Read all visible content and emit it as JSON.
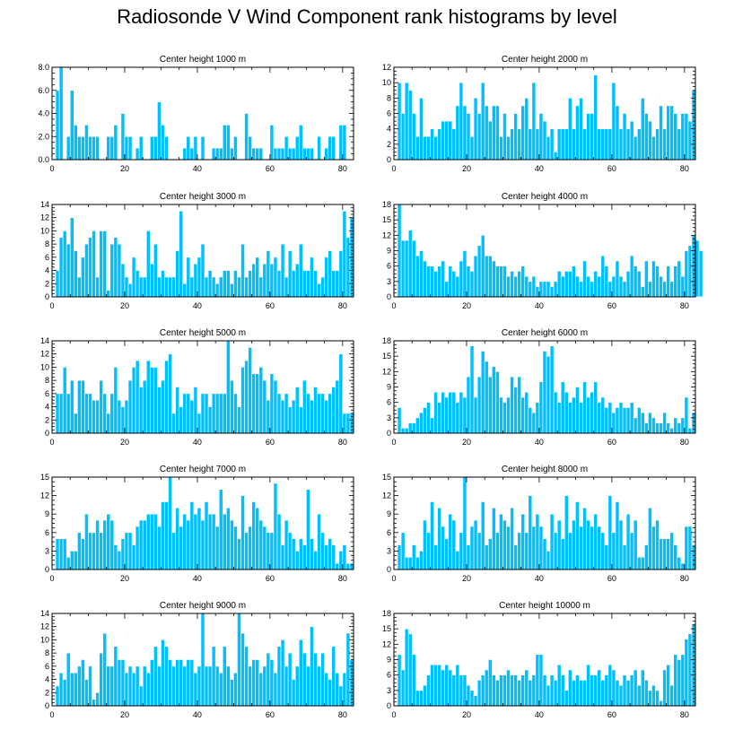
{
  "title": "Radiosonde V Wind Component rank histograms by level",
  "colors": {
    "bar": "#00bfff",
    "bar_edge": "#ffffff",
    "axis": "#000000"
  },
  "chart_data": [
    {
      "type": "bar",
      "title": "Center height 1000 m",
      "ylim": [
        0,
        8
      ],
      "yticks": [
        0,
        2,
        4,
        6,
        8
      ],
      "ytick_labels": [
        "0.0",
        "2.0",
        "4.0",
        "6.0",
        "8.0"
      ],
      "xticks": [
        0,
        20,
        40,
        60,
        80
      ],
      "xlim": [
        0,
        83
      ],
      "values": [
        0,
        6,
        8,
        0,
        2,
        6,
        3,
        2,
        2,
        3,
        2,
        2,
        2,
        0,
        0,
        2,
        2,
        3,
        0,
        4,
        2,
        2,
        0,
        1,
        2,
        0,
        0,
        2,
        2,
        5,
        3,
        2,
        0,
        0,
        0,
        0,
        1,
        2,
        1,
        2,
        0,
        2,
        0,
        0,
        1,
        1,
        1,
        3,
        3,
        1,
        2,
        0,
        0,
        4,
        2,
        1,
        1,
        1,
        0,
        0,
        3,
        1,
        1,
        1,
        2,
        1,
        1,
        2,
        3,
        1,
        1,
        1,
        0,
        2,
        0,
        1,
        2,
        2,
        0,
        3,
        3,
        0
      ]
    },
    {
      "type": "bar",
      "title": "Center height 2000 m",
      "ylim": [
        0,
        12
      ],
      "yticks": [
        0,
        2,
        4,
        6,
        8,
        10,
        12
      ],
      "ytick_labels": [
        "0",
        "2",
        "4",
        "6",
        "8",
        "10",
        "12"
      ],
      "xticks": [
        0,
        20,
        40,
        60,
        80
      ],
      "xlim": [
        0,
        83
      ],
      "values": [
        0,
        10,
        6,
        10,
        9,
        6,
        3,
        8,
        3,
        3,
        4,
        3,
        4,
        5,
        5,
        5,
        4,
        7,
        10,
        7,
        6,
        3,
        8,
        6,
        10,
        7,
        5,
        7,
        7,
        3,
        6,
        3,
        4,
        6,
        4,
        7,
        8,
        4,
        10,
        4,
        6,
        5,
        3,
        4,
        1,
        4,
        4,
        4,
        8,
        4,
        7,
        8,
        4,
        6,
        6,
        11,
        4,
        4,
        4,
        4,
        10,
        7,
        4,
        6,
        4,
        5,
        3,
        4,
        8,
        6,
        5,
        3,
        4,
        7,
        4,
        7,
        7,
        6,
        4,
        6,
        6,
        5,
        9
      ]
    },
    {
      "type": "bar",
      "title": "Center height 3000 m",
      "ylim": [
        0,
        14
      ],
      "yticks": [
        0,
        2,
        4,
        6,
        8,
        10,
        12,
        14
      ],
      "ytick_labels": [
        "0",
        "2",
        "4",
        "6",
        "8",
        "10",
        "12",
        "14"
      ],
      "xticks": [
        0,
        20,
        40,
        60,
        80
      ],
      "xlim": [
        0,
        83
      ],
      "values": [
        0,
        4,
        9,
        10,
        8,
        12,
        7,
        3,
        6,
        8,
        9,
        10,
        3,
        10,
        10,
        1,
        8,
        9,
        8,
        5,
        3,
        2,
        6,
        4,
        3,
        3,
        10,
        5,
        8,
        3,
        4,
        3,
        3,
        3,
        7,
        13,
        2,
        6,
        3,
        5,
        6,
        8,
        3,
        4,
        3,
        2,
        3,
        4,
        4,
        2,
        4,
        3,
        8,
        3,
        4,
        5,
        6,
        3,
        5,
        7,
        5,
        6,
        4,
        8,
        3,
        7,
        4,
        5,
        8,
        4,
        4,
        6,
        4,
        2,
        3,
        6,
        7,
        4,
        4,
        7,
        13,
        9,
        12
      ]
    },
    {
      "type": "bar",
      "title": "Center height 4000 m",
      "ylim": [
        0,
        18
      ],
      "yticks": [
        0,
        3,
        6,
        9,
        12,
        15,
        18
      ],
      "ytick_labels": [
        "0",
        "3",
        "6",
        "9",
        "12",
        "15",
        "18"
      ],
      "xticks": [
        0,
        20,
        40,
        60,
        80
      ],
      "xlim": [
        0,
        83
      ],
      "values": [
        0,
        18,
        11,
        11,
        13,
        11,
        8,
        9,
        7,
        6,
        6,
        5,
        6,
        7,
        3,
        6,
        5,
        4,
        7,
        9,
        6,
        5,
        8,
        10,
        12,
        8,
        8,
        7,
        6,
        6,
        6,
        4,
        5,
        4,
        5,
        6,
        4,
        3,
        4,
        2,
        3,
        3,
        3,
        2,
        3,
        5,
        4,
        5,
        5,
        6,
        4,
        3,
        7,
        4,
        3,
        5,
        4,
        8,
        6,
        3,
        4,
        7,
        4,
        3,
        5,
        8,
        6,
        5,
        2,
        7,
        3,
        7,
        6,
        4,
        3,
        6,
        3,
        6,
        7,
        4,
        9,
        10,
        12,
        11,
        9
      ]
    },
    {
      "type": "bar",
      "title": "Center height 5000 m",
      "ylim": [
        0,
        14
      ],
      "yticks": [
        0,
        2,
        4,
        6,
        8,
        10,
        12,
        14
      ],
      "ytick_labels": [
        "0",
        "2",
        "4",
        "6",
        "8",
        "10",
        "12",
        "14"
      ],
      "xticks": [
        0,
        20,
        40,
        60,
        80
      ],
      "xlim": [
        0,
        83
      ],
      "values": [
        0,
        6,
        6,
        10,
        6,
        8,
        3,
        8,
        8,
        6,
        6,
        5,
        5,
        8,
        6,
        3,
        6,
        10,
        5,
        4,
        5,
        8,
        10,
        11,
        7,
        8,
        11,
        10,
        10,
        7,
        8,
        11,
        12,
        3,
        7,
        4,
        6,
        6,
        5,
        7,
        3,
        6,
        6,
        4,
        6,
        6,
        6,
        6,
        14,
        8,
        6,
        4,
        10,
        11,
        13,
        9,
        9,
        10,
        8,
        5,
        9,
        8,
        6,
        5,
        6,
        4,
        5,
        7,
        4,
        8,
        6,
        5,
        7,
        6,
        6,
        5,
        6,
        7,
        8,
        12,
        3,
        3,
        3
      ]
    },
    {
      "type": "bar",
      "title": "Center height 6000 m",
      "ylim": [
        0,
        18
      ],
      "yticks": [
        0,
        3,
        6,
        9,
        12,
        15,
        18
      ],
      "ytick_labels": [
        "0",
        "3",
        "6",
        "9",
        "12",
        "15",
        "18"
      ],
      "xticks": [
        0,
        20,
        40,
        60,
        80
      ],
      "xlim": [
        0,
        83
      ],
      "values": [
        0,
        5,
        1,
        1,
        2,
        2,
        3,
        4,
        5,
        6,
        3,
        8,
        6,
        8,
        7,
        8,
        8,
        6,
        8,
        7,
        11,
        17,
        7,
        11,
        16,
        14,
        11,
        13,
        12,
        7,
        6,
        7,
        11,
        9,
        11,
        7,
        8,
        5,
        4,
        6,
        10,
        16,
        15,
        17,
        8,
        6,
        10,
        8,
        6,
        7,
        9,
        6,
        10,
        7,
        8,
        10,
        6,
        7,
        5,
        6,
        4,
        5,
        6,
        5,
        5,
        6,
        3,
        5,
        4,
        2,
        4,
        3,
        2,
        2,
        4,
        2,
        1,
        3,
        2,
        3,
        7,
        1,
        4
      ]
    },
    {
      "type": "bar",
      "title": "Center height 7000 m",
      "ylim": [
        0,
        15
      ],
      "yticks": [
        0,
        3,
        6,
        9,
        12,
        15
      ],
      "ytick_labels": [
        "0",
        "3",
        "6",
        "9",
        "12",
        "15"
      ],
      "xticks": [
        0,
        20,
        40,
        60,
        80
      ],
      "xlim": [
        0,
        83
      ],
      "values": [
        0,
        5,
        5,
        5,
        2,
        3,
        3,
        6,
        5,
        9,
        6,
        6,
        8,
        6,
        8,
        9,
        8,
        4,
        3,
        5,
        6,
        6,
        4,
        7,
        8,
        8,
        9,
        9,
        9,
        7,
        11,
        11,
        15,
        6,
        10,
        7,
        9,
        8,
        11,
        9,
        10,
        8,
        11,
        9,
        9,
        7,
        13,
        9,
        10,
        8,
        7,
        5,
        12,
        6,
        7,
        11,
        10,
        8,
        7,
        6,
        6,
        14,
        9,
        4,
        8,
        6,
        5,
        3,
        5,
        4,
        13,
        5,
        3,
        9,
        6,
        4,
        5,
        4,
        1,
        3,
        4,
        1,
        1
      ]
    },
    {
      "type": "bar",
      "title": "Center height 8000 m",
      "ylim": [
        0,
        15
      ],
      "yticks": [
        0,
        3,
        6,
        9,
        12,
        15
      ],
      "ytick_labels": [
        "0",
        "3",
        "6",
        "9",
        "12",
        "15"
      ],
      "xticks": [
        0,
        20,
        40,
        60,
        80
      ],
      "xlim": [
        0,
        83
      ],
      "values": [
        0,
        4,
        6,
        2,
        2,
        4,
        2,
        3,
        8,
        6,
        11,
        4,
        10,
        7,
        5,
        9,
        8,
        3,
        6,
        15,
        4,
        7,
        8,
        6,
        11,
        4,
        5,
        10,
        6,
        9,
        8,
        7,
        10,
        4,
        6,
        9,
        6,
        12,
        7,
        9,
        7,
        5,
        3,
        9,
        6,
        8,
        5,
        12,
        6,
        8,
        11,
        7,
        10,
        8,
        7,
        9,
        7,
        6,
        4,
        12,
        6,
        11,
        8,
        4,
        9,
        6,
        8,
        2,
        2,
        4,
        10,
        7,
        8,
        5,
        5,
        5,
        6,
        4,
        2,
        1,
        7,
        7,
        4
      ]
    },
    {
      "type": "bar",
      "title": "Center height 9000 m",
      "ylim": [
        0,
        14
      ],
      "yticks": [
        0,
        2,
        4,
        6,
        8,
        10,
        12,
        14
      ],
      "ytick_labels": [
        "0",
        "2",
        "4",
        "6",
        "8",
        "10",
        "12",
        "14"
      ],
      "xticks": [
        0,
        20,
        40,
        60,
        80
      ],
      "xlim": [
        0,
        83
      ],
      "values": [
        0,
        3,
        5,
        4,
        8,
        5,
        5,
        6,
        7,
        4,
        6,
        1,
        2,
        8,
        11,
        6,
        6,
        9,
        7,
        7,
        5,
        6,
        5,
        6,
        3,
        6,
        5,
        7,
        9,
        6,
        10,
        9,
        7,
        6,
        7,
        7,
        6,
        7,
        7,
        5,
        6,
        14,
        6,
        6,
        9,
        6,
        5,
        9,
        6,
        4,
        5,
        14,
        11,
        9,
        6,
        7,
        7,
        5,
        6,
        8,
        7,
        5,
        9,
        10,
        6,
        8,
        4,
        6,
        10,
        8,
        6,
        12,
        8,
        6,
        8,
        5,
        4,
        9,
        5,
        3,
        5,
        11,
        7
      ]
    },
    {
      "type": "bar",
      "title": "Center height 10000 m",
      "ylim": [
        0,
        18
      ],
      "yticks": [
        0,
        3,
        6,
        9,
        12,
        15,
        18
      ],
      "ytick_labels": [
        "0",
        "3",
        "6",
        "9",
        "12",
        "15",
        "18"
      ],
      "xticks": [
        0,
        20,
        40,
        60,
        80
      ],
      "xlim": [
        0,
        83
      ],
      "values": [
        0,
        10,
        7,
        15,
        14,
        10,
        3,
        3,
        4,
        6,
        8,
        8,
        8,
        7,
        8,
        7,
        6,
        8,
        6,
        6,
        4,
        3,
        2,
        5,
        6,
        7,
        9,
        6,
        5,
        6,
        6,
        7,
        6,
        6,
        5,
        6,
        7,
        5,
        6,
        10,
        10,
        6,
        4,
        6,
        5,
        8,
        6,
        3,
        7,
        5,
        6,
        5,
        5,
        8,
        6,
        6,
        7,
        5,
        6,
        8,
        7,
        5,
        4,
        6,
        5,
        6,
        7,
        4,
        7,
        5,
        3,
        4,
        3,
        1,
        7,
        8,
        4,
        10,
        9,
        10,
        13,
        14,
        16
      ]
    }
  ]
}
